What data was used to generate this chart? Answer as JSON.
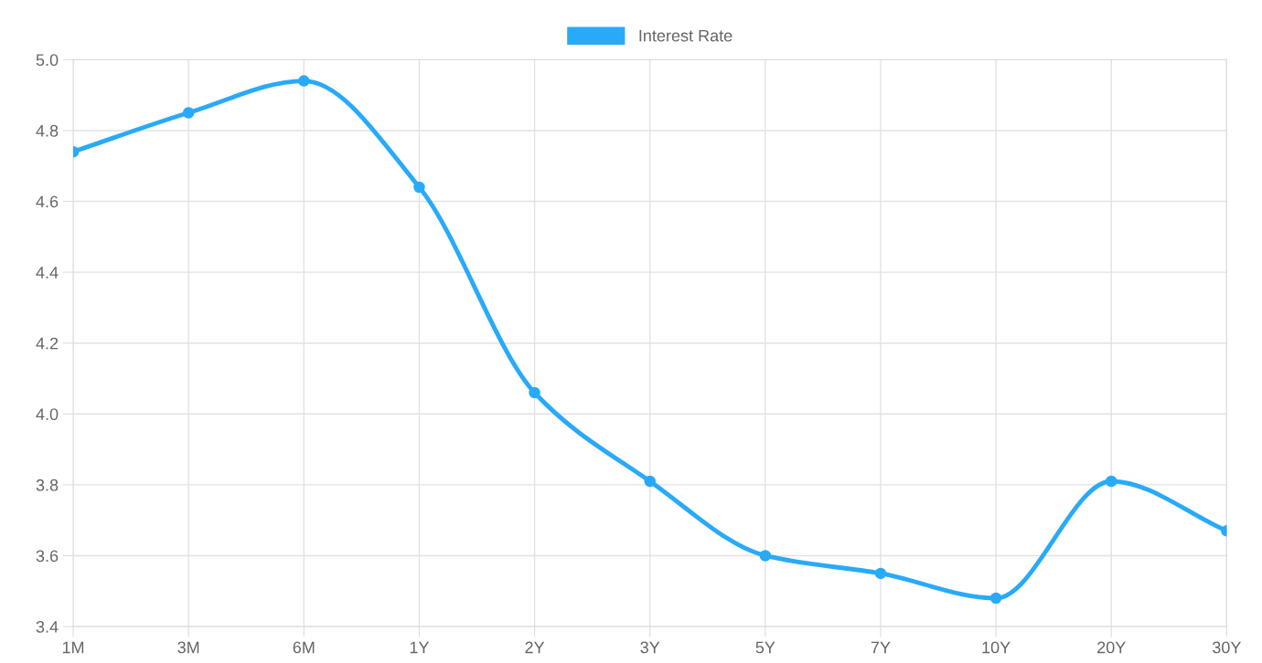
{
  "chart_data": {
    "type": "line",
    "categories": [
      "1M",
      "3M",
      "6M",
      "1Y",
      "2Y",
      "3Y",
      "5Y",
      "7Y",
      "10Y",
      "20Y",
      "30Y"
    ],
    "series": [
      {
        "name": "Interest Rate",
        "color": "#29aaf9",
        "values": [
          4.74,
          4.85,
          4.94,
          4.64,
          4.06,
          3.81,
          3.6,
          3.55,
          3.48,
          3.81,
          3.67
        ]
      }
    ],
    "ylim": [
      3.4,
      5.0
    ],
    "yticks": [
      {
        "value": 3.4,
        "label": "3.4"
      },
      {
        "value": 3.6,
        "label": "3.6"
      },
      {
        "value": 3.8,
        "label": "3.8"
      },
      {
        "value": 4.0,
        "label": "4.0"
      },
      {
        "value": 4.2,
        "label": "4.2"
      },
      {
        "value": 4.4,
        "label": "4.4"
      },
      {
        "value": 4.6,
        "label": "4.6"
      },
      {
        "value": 4.8,
        "label": "4.8"
      },
      {
        "value": 5.0,
        "label": "5.0"
      }
    ],
    "grid": true,
    "legend": "top",
    "marker": "circle",
    "line_style": "solid"
  }
}
